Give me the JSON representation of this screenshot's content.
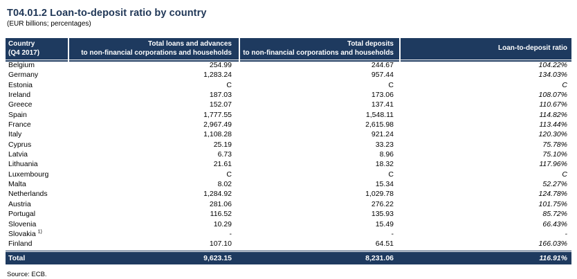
{
  "title": "T04.01.2 Loan-to-deposit ratio by country",
  "subtitle": "(EUR billions; percentages)",
  "source": "Source: ECB.",
  "colors": {
    "header_bg": "#1E3A5F",
    "header_text": "#FFFFFF",
    "title_text": "#1F3656",
    "body_text": "#000000"
  },
  "table": {
    "columns": [
      {
        "line1": "Country",
        "line2": "(Q4 2017)"
      },
      {
        "line1": "Total loans and advances",
        "line2": "to non-financial corporations and households"
      },
      {
        "line1": "Total deposits",
        "line2": "to non-financial corporations and households"
      },
      {
        "line1": "Loan-to-deposit ratio",
        "line2": ""
      }
    ],
    "rows": [
      {
        "country": "Belgium",
        "note": "",
        "loans": "254.99",
        "deposits": "244.67",
        "ratio": "104.22%"
      },
      {
        "country": "Germany",
        "note": "",
        "loans": "1,283.24",
        "deposits": "957.44",
        "ratio": "134.03%"
      },
      {
        "country": "Estonia",
        "note": "",
        "loans": "C",
        "deposits": "C",
        "ratio": "C"
      },
      {
        "country": "Ireland",
        "note": "",
        "loans": "187.03",
        "deposits": "173.06",
        "ratio": "108.07%"
      },
      {
        "country": "Greece",
        "note": "",
        "loans": "152.07",
        "deposits": "137.41",
        "ratio": "110.67%"
      },
      {
        "country": "Spain",
        "note": "",
        "loans": "1,777.55",
        "deposits": "1,548.11",
        "ratio": "114.82%"
      },
      {
        "country": "France",
        "note": "",
        "loans": "2,967.49",
        "deposits": "2,615.98",
        "ratio": "113.44%"
      },
      {
        "country": "Italy",
        "note": "",
        "loans": "1,108.28",
        "deposits": "921.24",
        "ratio": "120.30%"
      },
      {
        "country": "Cyprus",
        "note": "",
        "loans": "25.19",
        "deposits": "33.23",
        "ratio": "75.78%"
      },
      {
        "country": "Latvia",
        "note": "",
        "loans": "6.73",
        "deposits": "8.96",
        "ratio": "75.10%"
      },
      {
        "country": "Lithuania",
        "note": "",
        "loans": "21.61",
        "deposits": "18.32",
        "ratio": "117.96%"
      },
      {
        "country": "Luxembourg",
        "note": "",
        "loans": "C",
        "deposits": "C",
        "ratio": "C"
      },
      {
        "country": "Malta",
        "note": "",
        "loans": "8.02",
        "deposits": "15.34",
        "ratio": "52.27%"
      },
      {
        "country": "Netherlands",
        "note": "",
        "loans": "1,284.92",
        "deposits": "1,029.78",
        "ratio": "124.78%"
      },
      {
        "country": "Austria",
        "note": "",
        "loans": "281.06",
        "deposits": "276.22",
        "ratio": "101.75%"
      },
      {
        "country": "Portugal",
        "note": "",
        "loans": "116.52",
        "deposits": "135.93",
        "ratio": "85.72%"
      },
      {
        "country": "Slovenia",
        "note": "",
        "loans": "10.29",
        "deposits": "15.49",
        "ratio": "66.43%"
      },
      {
        "country": "Slovakia",
        "note": "1)",
        "loans": "-",
        "deposits": "-",
        "ratio": "-"
      },
      {
        "country": "Finland",
        "note": "",
        "loans": "107.10",
        "deposits": "64.51",
        "ratio": "166.03%"
      }
    ],
    "total": {
      "country": "Total",
      "loans": "9,623.15",
      "deposits": "8,231.06",
      "ratio": "116.91%"
    }
  }
}
